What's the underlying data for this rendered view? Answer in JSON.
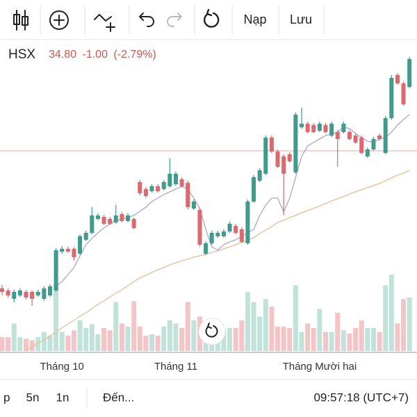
{
  "toolbar": {
    "load": "Nạp",
    "save": "Lưu"
  },
  "quote": {
    "symbol": "HSX",
    "price": "34.80",
    "change": "-1.00",
    "change_pct": "(-2.79%)"
  },
  "footer": {
    "range_p": "p",
    "range_5n": "5n",
    "range_1n": "1n",
    "goto": "Đến...",
    "time": "09:57:18 (UTC+7)"
  },
  "chart_data": {
    "type": "candlestick",
    "categories": [
      null,
      null,
      null,
      null,
      null,
      null,
      null,
      null,
      null,
      null,
      "Tháng 10",
      null,
      null,
      null,
      null,
      null,
      null,
      null,
      null,
      null,
      null,
      null,
      null,
      null,
      null,
      null,
      null,
      null,
      null,
      "Tháng 11",
      null,
      null,
      null,
      null,
      null,
      null,
      null,
      null,
      null,
      null,
      null,
      null,
      null,
      null,
      null,
      null,
      null,
      null,
      null,
      null,
      null,
      null,
      null,
      "Tháng Mười hai",
      null,
      null,
      null,
      null,
      null,
      null,
      null,
      null,
      null,
      null,
      null,
      null,
      null,
      null,
      null
    ],
    "open": [
      24.9,
      24.75,
      24.15,
      24.4,
      24.65,
      24.65,
      24.4,
      24.15,
      24.4,
      24.75,
      27.55,
      27.75,
      27.75,
      27.4,
      28.4,
      28.9,
      29.9,
      30.05,
      29.9,
      29.65,
      30.25,
      29.75,
      29.9,
      32.55,
      32.05,
      31.9,
      32.25,
      32.05,
      32.25,
      32.4,
      32.75,
      32.5,
      30.65,
      30.55,
      27.4,
      28.15,
      28.65,
      28.65,
      29.0,
      29.4,
      29.15,
      28.15,
      31.15,
      32.65,
      33.15,
      35.75,
      34.75,
      34.4,
      34.55,
      33.25,
      36.5,
      36.75,
      36.65,
      36.25,
      36.65,
      35.9,
      36.15,
      36.15,
      36.15,
      35.9,
      35.75,
      34.4,
      34.9,
      35.9,
      34.65,
      37.15,
      40.25,
      39.65,
      39.4
    ],
    "high": [
      25.15,
      24.9,
      24.8,
      24.9,
      24.8,
      24.75,
      24.8,
      25.05,
      25.2,
      27.8,
      27.95,
      27.9,
      27.85,
      28.8,
      29.05,
      30.75,
      30.3,
      30.2,
      30.05,
      30.9,
      30.4,
      30.3,
      30.0,
      32.7,
      32.2,
      32.4,
      32.4,
      32.7,
      34.25,
      33.3,
      32.9,
      32.65,
      31.3,
      30.7,
      28.3,
      29.05,
      29.05,
      29.15,
      29.7,
      29.55,
      29.3,
      31.3,
      33.05,
      33.55,
      35.9,
      35.9,
      34.9,
      34.55,
      34.7,
      37.55,
      37.9,
      36.9,
      36.8,
      36.9,
      36.8,
      36.9,
      36.3,
      36.9,
      36.3,
      36.05,
      35.9,
      35.05,
      35.8,
      36.05,
      37.3,
      40.25,
      40.4,
      39.8,
      41.55
    ],
    "low": [
      24.4,
      24.25,
      23.9,
      24.3,
      24.1,
      23.65,
      24.3,
      24.0,
      24.3,
      24.65,
      27.4,
      27.45,
      26.9,
      27.3,
      28.3,
      28.8,
      29.8,
      29.45,
      29.45,
      29.55,
      29.65,
      29.65,
      29.15,
      31.6,
      31.4,
      31.8,
      31.8,
      31.95,
      32.15,
      32.3,
      32.15,
      30.6,
      30.55,
      27.9,
      27.3,
      28.05,
      28.55,
      28.55,
      28.9,
      28.8,
      28.15,
      28.05,
      31.05,
      32.55,
      33.05,
      34.65,
      33.55,
      30.15,
      33.95,
      33.15,
      36.4,
      36.05,
      36.05,
      36.15,
      36.05,
      35.8,
      33.65,
      36.05,
      35.55,
      35.3,
      34.55,
      34.3,
      34.8,
      35.55,
      34.55,
      37.05,
      39.55,
      38.05,
      39.3
    ],
    "close": [
      24.65,
      24.4,
      24.65,
      24.75,
      24.25,
      24.15,
      24.65,
      24.9,
      25.05,
      27.65,
      27.75,
      27.55,
      27.15,
      28.65,
      28.9,
      30.15,
      30.15,
      29.55,
      29.55,
      30.15,
      29.75,
      30.15,
      29.25,
      31.75,
      31.55,
      32.25,
      31.9,
      32.55,
      33.15,
      33.15,
      32.25,
      30.75,
      31.15,
      28.05,
      28.15,
      28.9,
      28.9,
      29.0,
      29.55,
      28.9,
      28.25,
      31.15,
      32.9,
      33.4,
      35.75,
      34.75,
      33.65,
      33.15,
      34.05,
      37.4,
      36.75,
      36.15,
      36.15,
      36.75,
      36.15,
      36.75,
      35.65,
      36.75,
      35.65,
      35.4,
      34.65,
      34.9,
      35.65,
      35.65,
      37.15,
      40.05,
      39.65,
      38.15,
      41.4
    ],
    "volume": [
      18,
      18,
      36,
      18,
      16,
      14,
      18,
      25,
      20,
      86,
      25,
      20,
      27,
      40,
      30,
      35,
      22,
      30,
      27,
      64,
      36,
      32,
      65,
      32,
      20,
      22,
      20,
      32,
      40,
      36,
      30,
      64,
      40,
      45,
      25,
      25,
      35,
      28,
      30,
      30,
      40,
      77,
      64,
      45,
      68,
      58,
      32,
      32,
      30,
      86,
      25,
      36,
      30,
      55,
      25,
      25,
      50,
      27,
      23,
      30,
      40,
      30,
      30,
      25,
      86,
      100,
      36,
      68,
      70
    ],
    "moving_averages": [
      {
        "color": "#a9a3d8",
        "values": [
          null,
          null,
          null,
          null,
          null,
          null,
          null,
          null,
          null,
          25.05,
          25.4,
          25.9,
          26.4,
          27.25,
          28.05,
          28.5,
          28.9,
          29.25,
          29.55,
          29.75,
          29.9,
          30.0,
          30.15,
          30.45,
          30.75,
          31.15,
          31.4,
          31.65,
          31.85,
          32.05,
          32.25,
          32.05,
          31.4,
          30.65,
          29.15,
          27.9,
          27.65,
          28.05,
          28.25,
          28.4,
          28.65,
          28.9,
          29.15,
          30.15,
          30.9,
          31.4,
          31.4,
          30.4,
          31.4,
          32.9,
          34.4,
          35.15,
          35.4,
          35.65,
          35.9,
          36.0,
          36.15,
          36.5,
          36.4,
          36.05,
          35.75,
          35.5,
          35.4,
          35.65,
          35.75,
          36.15,
          36.65,
          37.05,
          37.4
        ]
      },
      {
        "color": "#ebbd8f",
        "values": [
          null,
          null,
          null,
          null,
          20.4,
          20.7,
          20.95,
          21.2,
          21.5,
          21.75,
          22.05,
          22.35,
          22.6,
          22.9,
          23.15,
          23.45,
          23.75,
          24.0,
          24.3,
          24.55,
          24.8,
          25.1,
          25.4,
          25.65,
          25.85,
          26.05,
          26.25,
          26.4,
          26.6,
          26.75,
          26.9,
          27.0,
          27.15,
          27.25,
          27.35,
          27.5,
          27.6,
          27.75,
          27.9,
          28.05,
          28.2,
          28.35,
          28.55,
          28.85,
          29.1,
          29.35,
          29.65,
          29.8,
          30.0,
          30.15,
          30.35,
          30.5,
          30.65,
          30.85,
          31.0,
          31.2,
          31.35,
          31.5,
          31.7,
          31.85,
          32.0,
          32.15,
          32.3,
          32.45,
          32.65,
          32.85,
          33.05,
          33.2,
          33.4
        ]
      }
    ],
    "price_line": 34.8,
    "price_line_color": "#ebb7b9",
    "up_color": "#3d9c8a",
    "down_color": "#e0676b",
    "volume_up_color": "#bfe3d9",
    "volume_down_color": "#f4c4c7",
    "ylim": [
      20,
      42
    ],
    "y2lim": [
      0,
      100
    ]
  }
}
